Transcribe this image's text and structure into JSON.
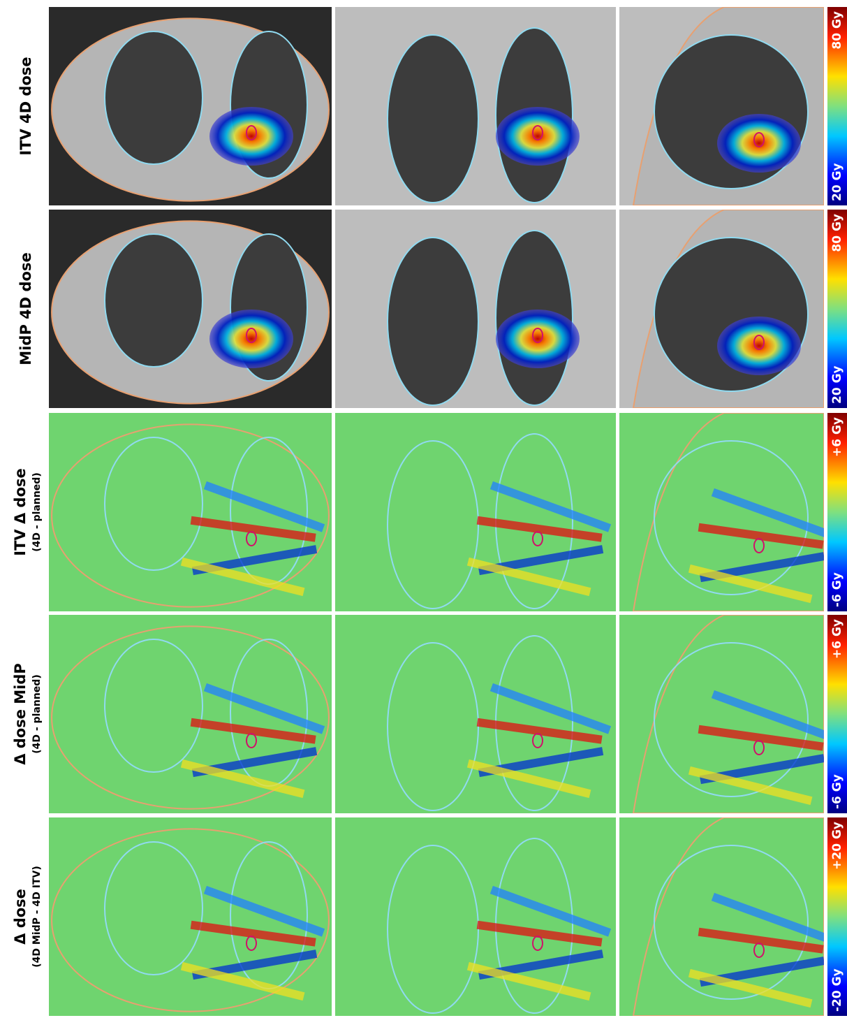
{
  "rows": [
    {
      "label": "ITV 4D dose",
      "colorbar": {
        "low": "20 Gy",
        "high": "80 Gy"
      }
    },
    {
      "label": "MidP 4D dose",
      "colorbar": {
        "low": "20 Gy",
        "high": "80 Gy"
      }
    },
    {
      "label": "ITV Δ dose",
      "sublabel": "(4D - planned)",
      "colorbar": {
        "low": "-6 Gy",
        "high": "+6 Gy"
      }
    },
    {
      "label": "Δ dose MidP",
      "sublabel": "(4D - planned)",
      "colorbar": {
        "low": "-6 Gy",
        "high": "+6 Gy"
      }
    },
    {
      "label": "Δ dose",
      "sublabel": "(4D MidP - 4D ITV)",
      "colorbar": {
        "low": "-20 Gy",
        "high": "+20 Gy"
      }
    }
  ]
}
